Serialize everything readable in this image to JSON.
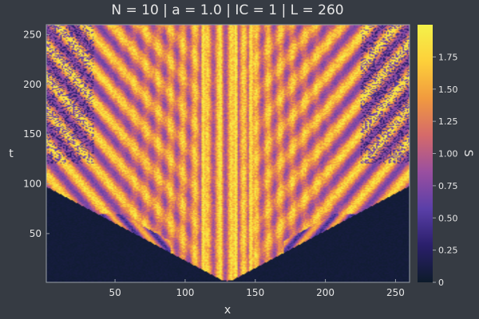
{
  "chart_data": {
    "type": "heatmap",
    "title": "N = 10 | a = 1.0 | IC = 1 | L = 260",
    "xlabel": "x",
    "ylabel": "t",
    "colorbar_label": "S",
    "xlim": [
      1,
      260
    ],
    "ylim": [
      1,
      260
    ],
    "x_ticks": [
      50,
      100,
      150,
      200,
      250
    ],
    "y_ticks": [
      50,
      100,
      150,
      200,
      250
    ],
    "colorbar_range": [
      0,
      2.0
    ],
    "colorbar_ticks": [
      0,
      0.25,
      0.5,
      0.75,
      1.0,
      1.25,
      1.5,
      1.75
    ],
    "colorbar_tick_labels": [
      "0",
      "0.25",
      "0.50",
      "0.75",
      "1.00",
      "1.25",
      "1.50",
      "1.75"
    ],
    "colormap": "plasma",
    "colormap_stops": [
      "#0d1b2a",
      "#2a1f6b",
      "#5a3fa8",
      "#9a4fa0",
      "#d56a6a",
      "#f19a3f",
      "#fdd03a",
      "#f4f24a"
    ],
    "pattern": {
      "origin_x": 130,
      "origin_t": 1,
      "front_slope": 0.75,
      "quiescent_below_t": 70,
      "central_stripe_x": [
        113,
        125,
        136,
        147
      ]
    },
    "grid": false
  }
}
